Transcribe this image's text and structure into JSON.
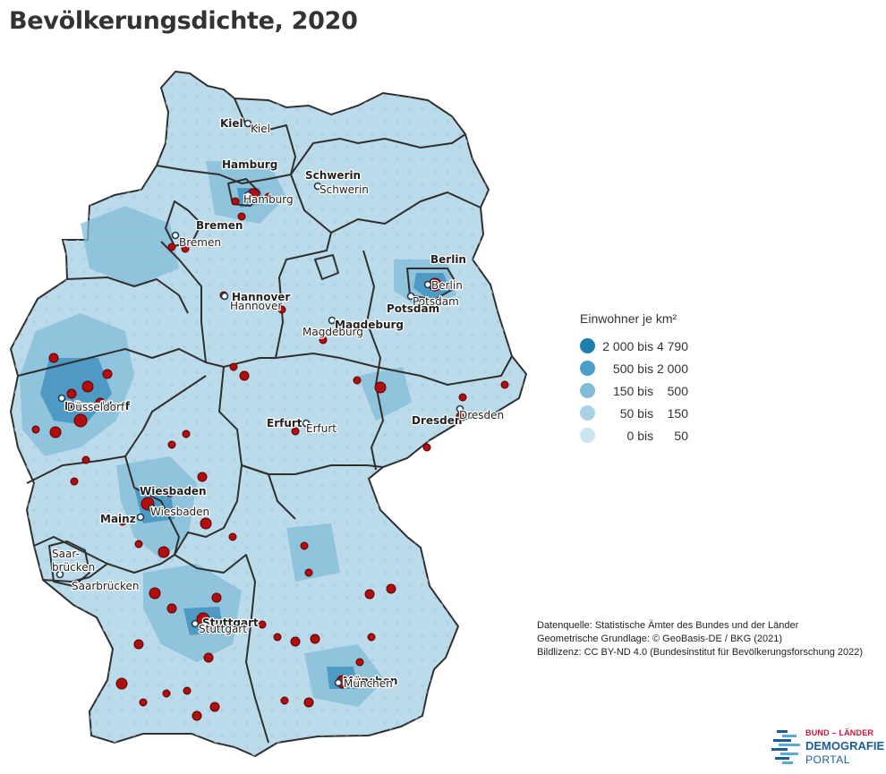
{
  "title": "Bevölkerungsdichte, 2020",
  "legend": {
    "title": "Einwohner je km²",
    "classes": [
      {
        "label": "2 000 bis 4 790",
        "color": "#1f7fac"
      },
      {
        "label": "500 bis 2 000",
        "color": "#4c9ec8"
      },
      {
        "label": "150 bis    500",
        "color": "#82bcd8"
      },
      {
        "label": "50 bis    150",
        "color": "#a9d2e5"
      },
      {
        "label": "0 bis      50",
        "color": "#cbe5f0"
      }
    ]
  },
  "cities": {
    "kiel": "Kiel",
    "hamburg": "Hamburg",
    "schwerin": "Schwerin",
    "bremen": "Bremen",
    "berlin": "Berlin",
    "potsdam": "Potsdam",
    "hannover": "Hannover",
    "magdeburg": "Magdeburg",
    "duesseldorf": "Düsseldorf",
    "erfurt": "Erfurt",
    "dresden": "Dresden",
    "wiesbaden": "Wiesbaden",
    "mainz": "Mainz",
    "saarbruecken_1": "Saar-",
    "saarbruecken_2": "brücken",
    "saarbruecken": "Saarbrücken",
    "stuttgart": "Stuttgart",
    "muenchen": "München"
  },
  "credits": {
    "source": "Datenquelle: Statistische Ämter des Bundes und der Länder",
    "geometry": "Geometrische Grundlage: © GeoBasis-DE / BKG (2021)",
    "license": "Bildlizenz: CC BY-ND 4.0 (Bundesinstitut für Bevölkerungsforschung 2022)"
  },
  "logo": {
    "top": "BUND – LÄNDER",
    "main": "DEMOGRAFIE",
    "sub": "PORTAL"
  }
}
